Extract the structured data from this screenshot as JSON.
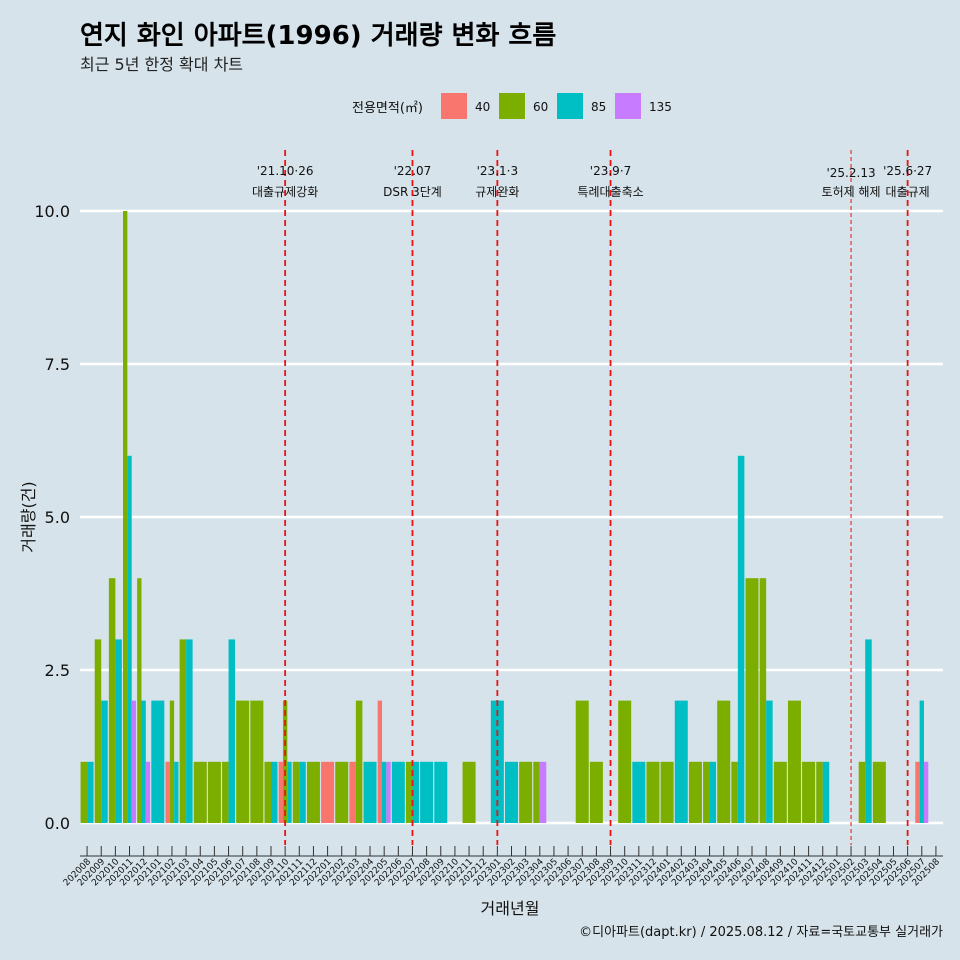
{
  "chart_data": {
    "type": "bar",
    "title": "연지 화인 아파트(1996) 거래량 변화 흐름",
    "subtitle": "최근 5년 한정 확대 차트",
    "xlabel": "거래년월",
    "ylabel": "거래량(건)",
    "ylim": [
      0,
      11
    ],
    "yticks": [
      0,
      2.5,
      5,
      7.5,
      10
    ],
    "ytick_labels": [
      "0.0",
      "2.5",
      "5.0",
      "7.5",
      "10.0"
    ],
    "legend": {
      "title": "전용면적(㎡)",
      "position": "top"
    },
    "caption": "©디아파트(dapt.kr) / 2025.08.12 / 자료=국토교통부 실거래가",
    "categories": [
      "202008",
      "202009",
      "202010",
      "202011",
      "202012",
      "202101",
      "202102",
      "202103",
      "202104",
      "202105",
      "202106",
      "202107",
      "202108",
      "202109",
      "202110",
      "202111",
      "202112",
      "202201",
      "202202",
      "202203",
      "202204",
      "202205",
      "202206",
      "202207",
      "202208",
      "202209",
      "202210",
      "202211",
      "202212",
      "202301",
      "202302",
      "202303",
      "202304",
      "202305",
      "202306",
      "202307",
      "202308",
      "202309",
      "202310",
      "202311",
      "202312",
      "202401",
      "202402",
      "202403",
      "202404",
      "202405",
      "202406",
      "202407",
      "202408",
      "202409",
      "202410",
      "202411",
      "202412",
      "202501",
      "202502",
      "202503",
      "202504",
      "202505",
      "202506",
      "202507",
      "202508"
    ],
    "series": [
      {
        "name": "40",
        "color": "#f8766d",
        "values": [
          0,
          0,
          0,
          0,
          0,
          0,
          1,
          0,
          0,
          0,
          0,
          0,
          0,
          0,
          1,
          0,
          0,
          1,
          0,
          1,
          0,
          2,
          0,
          0,
          0,
          0,
          0,
          0,
          0,
          0,
          0,
          0,
          0,
          0,
          0,
          0,
          0,
          0,
          0,
          0,
          0,
          0,
          0,
          0,
          0,
          0,
          0,
          0,
          0,
          0,
          0,
          0,
          0,
          0,
          0,
          0,
          0,
          0,
          0,
          1,
          0
        ]
      },
      {
        "name": "60",
        "color": "#7cae00",
        "values": [
          1,
          3,
          4,
          10,
          4,
          0,
          2,
          3,
          1,
          1,
          1,
          2,
          2,
          1,
          2,
          1,
          1,
          0,
          1,
          2,
          0,
          0,
          0,
          1,
          0,
          0,
          0,
          1,
          0,
          0,
          0,
          1,
          1,
          0,
          0,
          2,
          1,
          0,
          2,
          0,
          1,
          1,
          0,
          1,
          1,
          2,
          1,
          4,
          4,
          1,
          2,
          1,
          1,
          0,
          0,
          1,
          1,
          0,
          0,
          0,
          0
        ]
      },
      {
        "name": "85",
        "color": "#00bfc4",
        "values": [
          1,
          2,
          3,
          6,
          2,
          2,
          1,
          3,
          0,
          0,
          3,
          0,
          0,
          1,
          1,
          1,
          0,
          0,
          0,
          0,
          1,
          1,
          1,
          1,
          1,
          1,
          0,
          0,
          0,
          2,
          1,
          0,
          0,
          0,
          0,
          0,
          0,
          0,
          0,
          1,
          0,
          0,
          2,
          0,
          1,
          0,
          6,
          0,
          2,
          0,
          0,
          0,
          1,
          0,
          0,
          3,
          0,
          0,
          0,
          2,
          0
        ]
      },
      {
        "name": "135",
        "color": "#c77cff",
        "values": [
          0,
          0,
          0,
          2,
          1,
          0,
          0,
          0,
          0,
          0,
          0,
          0,
          0,
          0,
          0,
          0,
          0,
          0,
          0,
          0,
          0,
          1,
          0,
          0,
          0,
          0,
          0,
          0,
          0,
          0,
          0,
          0,
          1,
          0,
          0,
          0,
          0,
          0,
          0,
          0,
          0,
          0,
          0,
          0,
          0,
          0,
          0,
          0,
          0,
          0,
          0,
          0,
          0,
          0,
          0,
          0,
          0,
          0,
          0,
          1,
          0
        ]
      }
    ],
    "annotations": [
      {
        "category": "202110",
        "date": "'21.10·26",
        "label": "대출규제강화",
        "style": "dashed"
      },
      {
        "category": "202207",
        "date": "'22.07",
        "label": "DSR 3단계",
        "style": "dashed"
      },
      {
        "category": "202301",
        "date": "'23.1·3",
        "label": "규제완화",
        "style": "dashed"
      },
      {
        "category": "202309",
        "date": "'23.9·7",
        "label": "특례대출축소",
        "style": "dashed"
      },
      {
        "category": "202502",
        "date": "'25.2.13",
        "label": "토허제 해제",
        "style": "dashed-thin"
      },
      {
        "category": "202506",
        "date": "'25.6·27",
        "label": "대출규제",
        "style": "dashed"
      }
    ]
  }
}
